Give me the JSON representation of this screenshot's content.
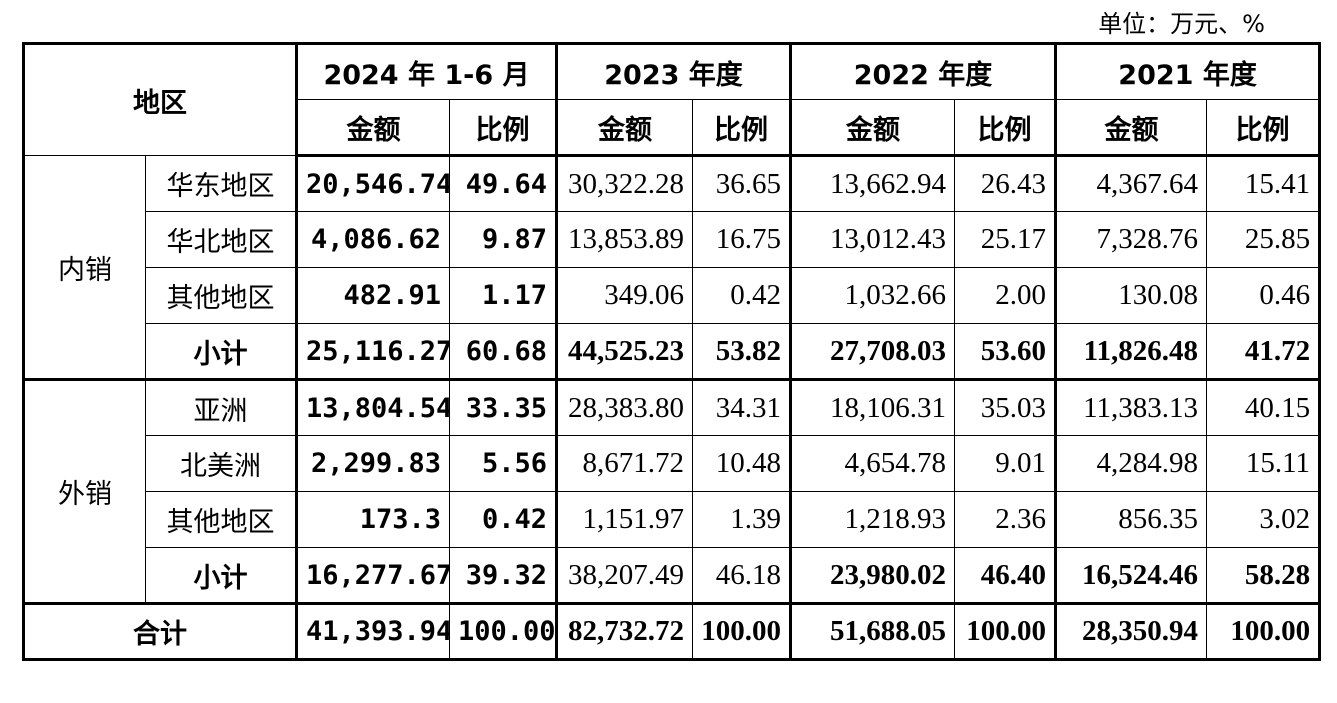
{
  "unit": "单位：万元、%",
  "header": {
    "region": "地区",
    "periods": [
      "2024 年 1-6 月",
      "2023 年度",
      "2022 年度",
      "2021 年度"
    ],
    "amount": "金额",
    "ratio": "比例"
  },
  "groups": [
    {
      "name": "内销",
      "rows": [
        {
          "region": "华东地区",
          "values": [
            "20,546.74",
            "49.64",
            "30,322.28",
            "36.65",
            "13,662.94",
            "26.43",
            "4,367.64",
            "15.41"
          ]
        },
        {
          "region": "华北地区",
          "values": [
            "4,086.62",
            "9.87",
            "13,853.89",
            "16.75",
            "13,012.43",
            "25.17",
            "7,328.76",
            "25.85"
          ]
        },
        {
          "region": "其他地区",
          "values": [
            "482.91",
            "1.17",
            "349.06",
            "0.42",
            "1,032.66",
            "2.00",
            "130.08",
            "0.46"
          ]
        },
        {
          "region": "小计",
          "values": [
            "25,116.27",
            "60.68",
            "44,525.23",
            "53.82",
            "27,708.03",
            "53.60",
            "11,826.48",
            "41.72"
          ]
        }
      ]
    },
    {
      "name": "外销",
      "rows": [
        {
          "region": "亚洲",
          "values": [
            "13,804.54",
            "33.35",
            "28,383.80",
            "34.31",
            "18,106.31",
            "35.03",
            "11,383.13",
            "40.15"
          ]
        },
        {
          "region": "北美洲",
          "values": [
            "2,299.83",
            "5.56",
            "8,671.72",
            "10.48",
            "4,654.78",
            "9.01",
            "4,284.98",
            "15.11"
          ]
        },
        {
          "region": "其他地区",
          "values": [
            "173.3",
            "0.42",
            "1,151.97",
            "1.39",
            "1,218.93",
            "2.36",
            "856.35",
            "3.02"
          ]
        },
        {
          "region": "小计",
          "values": [
            "16,277.67",
            "39.32",
            "38,207.49",
            "46.18",
            "23,980.02",
            "46.40",
            "16,524.46",
            "58.28"
          ]
        }
      ]
    }
  ],
  "total": {
    "label": "合计",
    "values": [
      "41,393.94",
      "100.00",
      "82,732.72",
      "100.00",
      "51,688.05",
      "100.00",
      "28,350.94",
      "100.00"
    ]
  }
}
